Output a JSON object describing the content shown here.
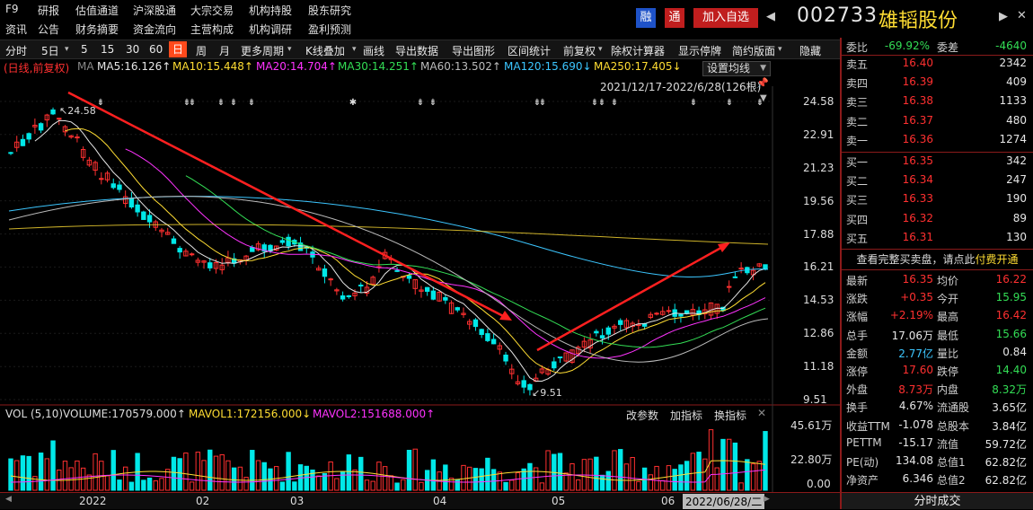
{
  "menu_row1": [
    "F9",
    "研报",
    "估值通道",
    "沪深股通",
    "大宗交易",
    "机构持股",
    "股东研究"
  ],
  "menu_row2": [
    "资讯",
    "公告",
    "财务摘要",
    "资金流向",
    "主营构成",
    "机构调研",
    "盈利预测"
  ],
  "stock": {
    "code": "002733",
    "name": "雄韬股份",
    "badge_rong": "融",
    "badge_tong": "通",
    "add_button": "加入自选",
    "prev": "◀",
    "next": "▶",
    "close": "✕"
  },
  "toolbar": {
    "items": [
      "分时",
      "5日",
      "5",
      "15",
      "30",
      "60",
      "日",
      "周",
      "月",
      "更多周期",
      "K线叠加",
      "画线",
      "导出数据",
      "导出图形",
      "区间统计",
      "前复权",
      "除权计算器",
      "显示停牌",
      "简约版面",
      "隐藏"
    ],
    "active": "日"
  },
  "ma": {
    "mode": "(日线,前复权)",
    "label": "MA",
    "ma5": "MA5:16.126↑",
    "ma10": "MA10:15.448↑",
    "ma20": "MA20:14.704↑",
    "ma30": "MA30:14.251↑",
    "ma60": "MA60:13.502↑",
    "ma120": "MA120:15.690↓",
    "ma250": "MA250:17.405↓",
    "settings": "设置均线",
    "range": "2021/12/17-2022/6/28(126根)"
  },
  "price_axis": [
    "24.58",
    "22.91",
    "21.23",
    "19.56",
    "17.88",
    "16.21",
    "14.53",
    "12.86",
    "11.18",
    "9.51"
  ],
  "annotations": {
    "high": "24.58",
    "low": "9.51"
  },
  "vol": {
    "title": "VOL (5,10)",
    "volume": "VOLUME:170579.000↑",
    "mavol1": "MAVOL1:172156.000↓",
    "mavol2": "MAVOL2:151688.000↑",
    "params": "改参数",
    "add": "加指标",
    "switch": "换指标",
    "axis": [
      "45.61万",
      "22.80万",
      "0.00"
    ]
  },
  "dates": {
    "labels": [
      "2022",
      "02",
      "03",
      "04",
      "05",
      "06"
    ],
    "cursor": "2022/06/28/二"
  },
  "order_book": {
    "weibi": {
      "label": "委比",
      "value": "-69.92%"
    },
    "weicha": {
      "label": "委差",
      "value": "-4640"
    },
    "sells": [
      {
        "label": "卖五",
        "price": "16.40",
        "vol": "2342"
      },
      {
        "label": "卖四",
        "price": "16.39",
        "vol": "409"
      },
      {
        "label": "卖三",
        "price": "16.38",
        "vol": "1133"
      },
      {
        "label": "卖二",
        "price": "16.37",
        "vol": "480"
      },
      {
        "label": "卖一",
        "price": "16.36",
        "vol": "1274"
      }
    ],
    "buys": [
      {
        "label": "买一",
        "price": "16.35",
        "vol": "342"
      },
      {
        "label": "买二",
        "price": "16.34",
        "vol": "247"
      },
      {
        "label": "买三",
        "price": "16.33",
        "vol": "190"
      },
      {
        "label": "买四",
        "price": "16.32",
        "vol": "89"
      },
      {
        "label": "买五",
        "price": "16.31",
        "vol": "130"
      }
    ],
    "promo": {
      "text": "查看完整买卖盘，请点此",
      "link": "付费开通"
    }
  },
  "stats": [
    [
      {
        "l": "最新",
        "v": "16.35",
        "c": "r"
      },
      {
        "l": "均价",
        "v": "16.22",
        "c": "r"
      }
    ],
    [
      {
        "l": "涨跌",
        "v": "+0.35",
        "c": "r"
      },
      {
        "l": "今开",
        "v": "15.95",
        "c": "g"
      }
    ],
    [
      {
        "l": "涨幅",
        "v": "+2.19%",
        "c": "r"
      },
      {
        "l": "最高",
        "v": "16.42",
        "c": "r"
      }
    ],
    [
      {
        "l": "总手",
        "v": "17.06万",
        "c": "w"
      },
      {
        "l": "最低",
        "v": "15.66",
        "c": "g"
      }
    ],
    [
      {
        "l": "金额",
        "v": "2.77亿",
        "c": "c"
      },
      {
        "l": "量比",
        "v": "0.84",
        "c": "w"
      }
    ],
    [
      {
        "l": "涨停",
        "v": "17.60",
        "c": "r"
      },
      {
        "l": "跌停",
        "v": "14.40",
        "c": "g"
      }
    ],
    [
      {
        "l": "外盘",
        "v": "8.73万",
        "c": "r"
      },
      {
        "l": "内盘",
        "v": "8.32万",
        "c": "g"
      }
    ],
    [
      {
        "l": "换手",
        "v": "4.67%",
        "c": "w"
      },
      {
        "l": "流通股",
        "v": "3.65亿",
        "c": "w"
      }
    ],
    [
      {
        "l": "收益TTM",
        "v": "-1.078",
        "c": "w"
      },
      {
        "l": "总股本",
        "v": "3.84亿",
        "c": "w"
      }
    ],
    [
      {
        "l": "PETTM",
        "v": "-15.17",
        "c": "w"
      },
      {
        "l": "流值",
        "v": "59.72亿",
        "c": "w"
      }
    ],
    [
      {
        "l": "PE(动)",
        "v": "134.08",
        "c": "w"
      },
      {
        "l": "总值1",
        "v": "62.82亿",
        "c": "w"
      }
    ],
    [
      {
        "l": "净资产",
        "v": "6.346",
        "c": "w"
      },
      {
        "l": "总值2",
        "v": "62.82亿",
        "c": "w"
      }
    ]
  ],
  "bottom_tab": "分时成交",
  "colors": {
    "up": "#ff3030",
    "down": "#00e8e8",
    "bg": "#000000",
    "accent": "#ff4a1c"
  }
}
